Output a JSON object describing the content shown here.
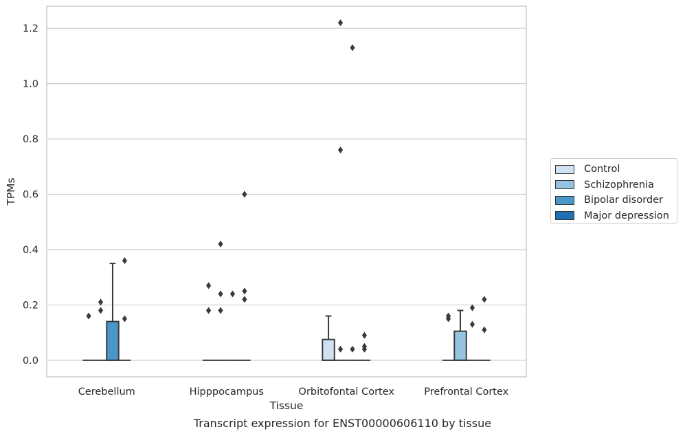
{
  "caption": "Transcript expression for ENST00000606110 by tissue",
  "chart_data": {
    "type": "box",
    "xlabel": "Tissue",
    "ylabel": "TPMs",
    "ylim": [
      -0.06,
      1.28
    ],
    "yticks": [
      0.0,
      0.2,
      0.4,
      0.6,
      0.8,
      1.0,
      1.2
    ],
    "ytick_labels": [
      "0.0",
      "0.2",
      "0.4",
      "0.6",
      "0.8",
      "1.0",
      "1.2"
    ],
    "grid": "horizontal",
    "legend_position": "right",
    "categories": [
      "Cerebellum",
      "Hipppocampus",
      "Orbitofontal Cortex",
      "Prefrontal Cortex"
    ],
    "series": [
      {
        "name": "Control",
        "color": "#d0e1f2",
        "boxes": [
          {
            "category": "Cerebellum",
            "q1": 0,
            "median": 0,
            "q3": 0,
            "whisker_low": 0,
            "whisker_high": 0,
            "outliers": [
              0.16
            ]
          },
          {
            "category": "Hipppocampus",
            "q1": 0,
            "median": 0,
            "q3": 0,
            "whisker_low": 0,
            "whisker_high": 0,
            "outliers": [
              0.18,
              0.27
            ]
          },
          {
            "category": "Orbitofontal Cortex",
            "q1": 0,
            "median": 0,
            "q3": 0.075,
            "whisker_low": 0,
            "whisker_high": 0.16,
            "outliers": []
          },
          {
            "category": "Prefrontal Cortex",
            "q1": 0,
            "median": 0,
            "q3": 0,
            "whisker_low": 0,
            "whisker_high": 0,
            "outliers": [
              0.15,
              0.16
            ]
          }
        ]
      },
      {
        "name": "Schizophrenia",
        "color": "#94c4df",
        "boxes": [
          {
            "category": "Cerebellum",
            "q1": 0,
            "median": 0,
            "q3": 0,
            "whisker_low": 0,
            "whisker_high": 0,
            "outliers": [
              0.18,
              0.21
            ]
          },
          {
            "category": "Hipppocampus",
            "q1": 0,
            "median": 0,
            "q3": 0,
            "whisker_low": 0,
            "whisker_high": 0,
            "outliers": [
              0.18,
              0.24,
              0.42
            ]
          },
          {
            "category": "Orbitofontal Cortex",
            "q1": 0,
            "median": 0,
            "q3": 0,
            "whisker_low": 0,
            "whisker_high": 0,
            "outliers": [
              0.04,
              0.76,
              1.22
            ]
          },
          {
            "category": "Prefrontal Cortex",
            "q1": 0,
            "median": 0,
            "q3": 0.105,
            "whisker_low": 0,
            "whisker_high": 0.18,
            "outliers": []
          }
        ]
      },
      {
        "name": "Bipolar disorder",
        "color": "#4a98c9",
        "boxes": [
          {
            "category": "Cerebellum",
            "q1": 0,
            "median": 0,
            "q3": 0.14,
            "whisker_low": 0,
            "whisker_high": 0.35,
            "outliers": []
          },
          {
            "category": "Hipppocampus",
            "q1": 0,
            "median": 0,
            "q3": 0,
            "whisker_low": 0,
            "whisker_high": 0,
            "outliers": [
              0.24
            ]
          },
          {
            "category": "Orbitofontal Cortex",
            "q1": 0,
            "median": 0,
            "q3": 0,
            "whisker_low": 0,
            "whisker_high": 0,
            "outliers": [
              0.04,
              1.13
            ]
          },
          {
            "category": "Prefrontal Cortex",
            "q1": 0,
            "median": 0,
            "q3": 0,
            "whisker_low": 0,
            "whisker_high": 0,
            "outliers": [
              0.13,
              0.19
            ]
          }
        ]
      },
      {
        "name": "Major depression",
        "color": "#2070b4",
        "boxes": [
          {
            "category": "Cerebellum",
            "q1": 0,
            "median": 0,
            "q3": 0,
            "whisker_low": 0,
            "whisker_high": 0,
            "outliers": [
              0.15,
              0.36
            ]
          },
          {
            "category": "Hipppocampus",
            "q1": 0,
            "median": 0,
            "q3": 0,
            "whisker_low": 0,
            "whisker_high": 0,
            "outliers": [
              0.22,
              0.25,
              0.6
            ]
          },
          {
            "category": "Orbitofontal Cortex",
            "q1": 0,
            "median": 0,
            "q3": 0,
            "whisker_low": 0,
            "whisker_high": 0,
            "outliers": [
              0.04,
              0.05,
              0.09
            ]
          },
          {
            "category": "Prefrontal Cortex",
            "q1": 0,
            "median": 0,
            "q3": 0,
            "whisker_low": 0,
            "whisker_high": 0,
            "outliers": [
              0.11,
              0.22
            ]
          }
        ]
      }
    ]
  }
}
